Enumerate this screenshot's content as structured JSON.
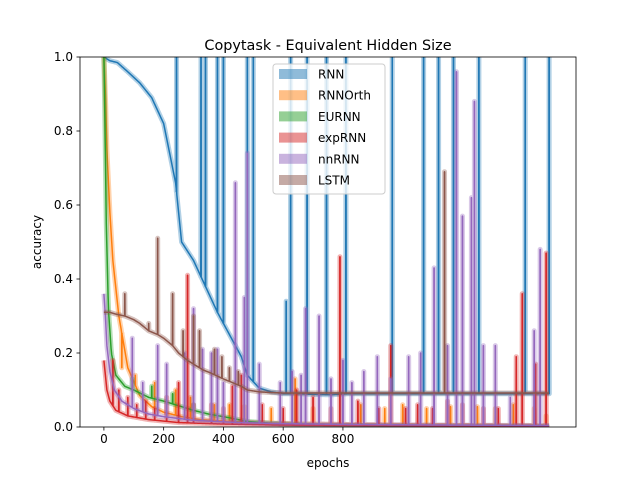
{
  "chart_data": {
    "type": "line",
    "title": "Copytask - Equivalent Hidden Size",
    "xlabel": "epochs",
    "ylabel": "accuracy",
    "xlim": [
      -80,
      1580
    ],
    "ylim": [
      0.0,
      1.0
    ],
    "xticks": [
      0,
      200,
      400,
      600,
      800
    ],
    "yticks": [
      0.0,
      0.2,
      0.4,
      0.6,
      0.8,
      1.0
    ],
    "xtick_labels": [
      "0",
      "200",
      "400",
      "600",
      "800"
    ],
    "ytick_labels": [
      "0.0",
      "0.2",
      "0.4",
      "0.6",
      "0.8",
      "1.0"
    ],
    "grid": false,
    "legend_position": "upper center",
    "series": [
      {
        "name": "RNN",
        "color": "#1f77b4",
        "band": true,
        "curve": [
          [
            0,
            1.0
          ],
          [
            20,
            0.99
          ],
          [
            45,
            0.985
          ],
          [
            80,
            0.96
          ],
          [
            120,
            0.93
          ],
          [
            160,
            0.89
          ],
          [
            200,
            0.82
          ],
          [
            240,
            0.66
          ],
          [
            260,
            0.5
          ],
          [
            300,
            0.45
          ],
          [
            340,
            0.38
          ],
          [
            380,
            0.31
          ],
          [
            420,
            0.25
          ],
          [
            460,
            0.19
          ],
          [
            480,
            0.14
          ],
          [
            520,
            0.105
          ],
          [
            560,
            0.095
          ],
          [
            600,
            0.09
          ],
          [
            650,
            0.09
          ],
          [
            700,
            0.088
          ],
          [
            760,
            0.087
          ],
          [
            820,
            0.09
          ],
          [
            1000,
            0.09
          ],
          [
            1490,
            0.09
          ]
        ],
        "spikes": [
          [
            243,
            1.0
          ],
          [
            325,
            1.0
          ],
          [
            340,
            1.0
          ],
          [
            380,
            1.0
          ],
          [
            400,
            1.0
          ],
          [
            480,
            1.0
          ],
          [
            500,
            1.0
          ],
          [
            610,
            0.34
          ],
          [
            625,
            1.0
          ],
          [
            680,
            1.0
          ],
          [
            745,
            1.0
          ],
          [
            810,
            1.0
          ],
          [
            965,
            1.0
          ],
          [
            1070,
            1.0
          ],
          [
            1120,
            1.0
          ],
          [
            1170,
            1.0
          ],
          [
            1255,
            1.0
          ],
          [
            1410,
            1.0
          ],
          [
            1490,
            1.0
          ]
        ]
      },
      {
        "name": "RNNOrth",
        "color": "#ff7f0e",
        "band": true,
        "curve": [
          [
            0,
            1.0
          ],
          [
            5,
            0.9
          ],
          [
            10,
            0.75
          ],
          [
            20,
            0.58
          ],
          [
            30,
            0.45
          ],
          [
            50,
            0.3
          ],
          [
            80,
            0.16
          ],
          [
            120,
            0.085
          ],
          [
            160,
            0.055
          ],
          [
            200,
            0.04
          ],
          [
            260,
            0.028
          ],
          [
            320,
            0.02
          ],
          [
            400,
            0.016
          ],
          [
            500,
            0.012
          ],
          [
            700,
            0.008
          ],
          [
            1000,
            0.005
          ],
          [
            1200,
            0.004
          ],
          [
            1490,
            0.003
          ]
        ],
        "spikes": [
          [
            60,
            0.16
          ],
          [
            105,
            0.14
          ],
          [
            170,
            0.12
          ],
          [
            240,
            0.1
          ],
          [
            290,
            0.08
          ],
          [
            370,
            0.06
          ],
          [
            420,
            0.06
          ],
          [
            470,
            0.055
          ],
          [
            560,
            0.05
          ],
          [
            640,
            0.13
          ],
          [
            700,
            0.05
          ],
          [
            860,
            0.06
          ],
          [
            940,
            0.05
          ],
          [
            1000,
            0.06
          ],
          [
            1080,
            0.05
          ],
          [
            1160,
            0.055
          ],
          [
            1250,
            0.055
          ],
          [
            1310,
            0.05
          ],
          [
            1370,
            0.06
          ],
          [
            1440,
            0.05
          ],
          [
            1480,
            0.03
          ]
        ]
      },
      {
        "name": "EURNN",
        "color": "#2ca02c",
        "band": true,
        "curve": [
          [
            0,
            1.0
          ],
          [
            3,
            0.85
          ],
          [
            8,
            0.55
          ],
          [
            15,
            0.32
          ],
          [
            25,
            0.2
          ],
          [
            40,
            0.14
          ],
          [
            70,
            0.11
          ],
          [
            100,
            0.1
          ],
          [
            150,
            0.08
          ],
          [
            200,
            0.07
          ],
          [
            260,
            0.055
          ],
          [
            300,
            0.045
          ],
          [
            350,
            0.035
          ],
          [
            420,
            0.025
          ],
          [
            480,
            0.015
          ],
          [
            560,
            0.01
          ],
          [
            700,
            0.005
          ],
          [
            1000,
            0.003
          ],
          [
            1490,
            0.002
          ]
        ],
        "spikes": [
          [
            95,
            0.13
          ],
          [
            160,
            0.11
          ],
          [
            230,
            0.09
          ],
          [
            300,
            0.06
          ]
        ]
      },
      {
        "name": "expRNN",
        "color": "#d62728",
        "band": true,
        "curve": [
          [
            0,
            0.18
          ],
          [
            10,
            0.1
          ],
          [
            20,
            0.07
          ],
          [
            40,
            0.045
          ],
          [
            80,
            0.03
          ],
          [
            150,
            0.02
          ],
          [
            250,
            0.012
          ],
          [
            400,
            0.008
          ],
          [
            600,
            0.005
          ],
          [
            900,
            0.004
          ],
          [
            1200,
            0.003
          ],
          [
            1490,
            0.002
          ]
        ],
        "spikes": [
          [
            30,
            0.18
          ],
          [
            50,
            0.1
          ],
          [
            80,
            0.08
          ],
          [
            110,
            0.06
          ],
          [
            140,
            0.07
          ],
          [
            170,
            0.05
          ],
          [
            210,
            0.08
          ],
          [
            250,
            0.12
          ],
          [
            280,
            0.41
          ],
          [
            300,
            0.06
          ],
          [
            360,
            0.06
          ],
          [
            400,
            0.05
          ],
          [
            430,
            0.11
          ],
          [
            460,
            0.14
          ],
          [
            530,
            0.06
          ],
          [
            600,
            0.05
          ],
          [
            645,
            0.1
          ],
          [
            700,
            0.08
          ],
          [
            760,
            0.05
          ],
          [
            790,
            0.46
          ],
          [
            850,
            0.07
          ],
          [
            920,
            0.05
          ],
          [
            960,
            0.22
          ],
          [
            1010,
            0.05
          ],
          [
            1050,
            0.06
          ],
          [
            1100,
            0.05
          ],
          [
            1150,
            0.07
          ],
          [
            1200,
            0.06
          ],
          [
            1270,
            0.05
          ],
          [
            1320,
            0.05
          ],
          [
            1380,
            0.19
          ],
          [
            1400,
            0.36
          ],
          [
            1445,
            0.17
          ],
          [
            1480,
            0.47
          ]
        ]
      },
      {
        "name": "nnRNN",
        "color": "#9467bd",
        "band": true,
        "curve": [
          [
            0,
            0.36
          ],
          [
            5,
            0.3
          ],
          [
            10,
            0.22
          ],
          [
            20,
            0.15
          ],
          [
            35,
            0.1
          ],
          [
            60,
            0.07
          ],
          [
            100,
            0.05
          ],
          [
            150,
            0.035
          ],
          [
            200,
            0.028
          ],
          [
            300,
            0.018
          ],
          [
            450,
            0.012
          ],
          [
            600,
            0.009
          ],
          [
            800,
            0.007
          ],
          [
            1000,
            0.006
          ],
          [
            1200,
            0.005
          ],
          [
            1490,
            0.004
          ]
        ],
        "spikes": [
          [
            95,
            0.24
          ],
          [
            130,
            0.12
          ],
          [
            180,
            0.22
          ],
          [
            210,
            0.17
          ],
          [
            270,
            0.2
          ],
          [
            300,
            0.32
          ],
          [
            330,
            0.21
          ],
          [
            360,
            0.2
          ],
          [
            380,
            0.21
          ],
          [
            400,
            0.12
          ],
          [
            440,
            0.66
          ],
          [
            470,
            0.35
          ],
          [
            480,
            0.74
          ],
          [
            520,
            0.17
          ],
          [
            590,
            0.12
          ],
          [
            630,
            0.15
          ],
          [
            660,
            0.14
          ],
          [
            675,
            0.32
          ],
          [
            720,
            0.3
          ],
          [
            760,
            0.13
          ],
          [
            800,
            0.18
          ],
          [
            830,
            0.12
          ],
          [
            870,
            0.15
          ],
          [
            915,
            0.19
          ],
          [
            960,
            0.13
          ],
          [
            1020,
            0.19
          ],
          [
            1060,
            0.2
          ],
          [
            1105,
            0.43
          ],
          [
            1150,
            0.22
          ],
          [
            1180,
            0.96
          ],
          [
            1200,
            0.57
          ],
          [
            1230,
            0.62
          ],
          [
            1240,
            0.88
          ],
          [
            1270,
            0.22
          ],
          [
            1310,
            0.22
          ],
          [
            1360,
            0.08
          ],
          [
            1440,
            0.26
          ],
          [
            1460,
            0.48
          ]
        ]
      },
      {
        "name": "LSTM",
        "color": "#8c564b",
        "band": true,
        "curve": [
          [
            0,
            0.31
          ],
          [
            20,
            0.31
          ],
          [
            40,
            0.305
          ],
          [
            70,
            0.3
          ],
          [
            100,
            0.29
          ],
          [
            120,
            0.28
          ],
          [
            150,
            0.26
          ],
          [
            180,
            0.25
          ],
          [
            200,
            0.24
          ],
          [
            230,
            0.22
          ],
          [
            250,
            0.2
          ],
          [
            280,
            0.18
          ],
          [
            300,
            0.17
          ],
          [
            330,
            0.155
          ],
          [
            360,
            0.145
          ],
          [
            400,
            0.13
          ],
          [
            430,
            0.12
          ],
          [
            460,
            0.11
          ],
          [
            480,
            0.1
          ],
          [
            520,
            0.095
          ],
          [
            560,
            0.093
          ],
          [
            600,
            0.092
          ],
          [
            700,
            0.092
          ],
          [
            1000,
            0.092
          ],
          [
            1490,
            0.092
          ]
        ],
        "spikes": [
          [
            70,
            0.36
          ],
          [
            150,
            0.28
          ],
          [
            180,
            0.51
          ],
          [
            230,
            0.36
          ],
          [
            265,
            0.26
          ],
          [
            300,
            0.3
          ],
          [
            320,
            0.26
          ],
          [
            370,
            0.21
          ],
          [
            395,
            0.19
          ],
          [
            420,
            0.16
          ],
          [
            450,
            0.15
          ],
          [
            1140,
            0.69
          ]
        ]
      }
    ]
  }
}
